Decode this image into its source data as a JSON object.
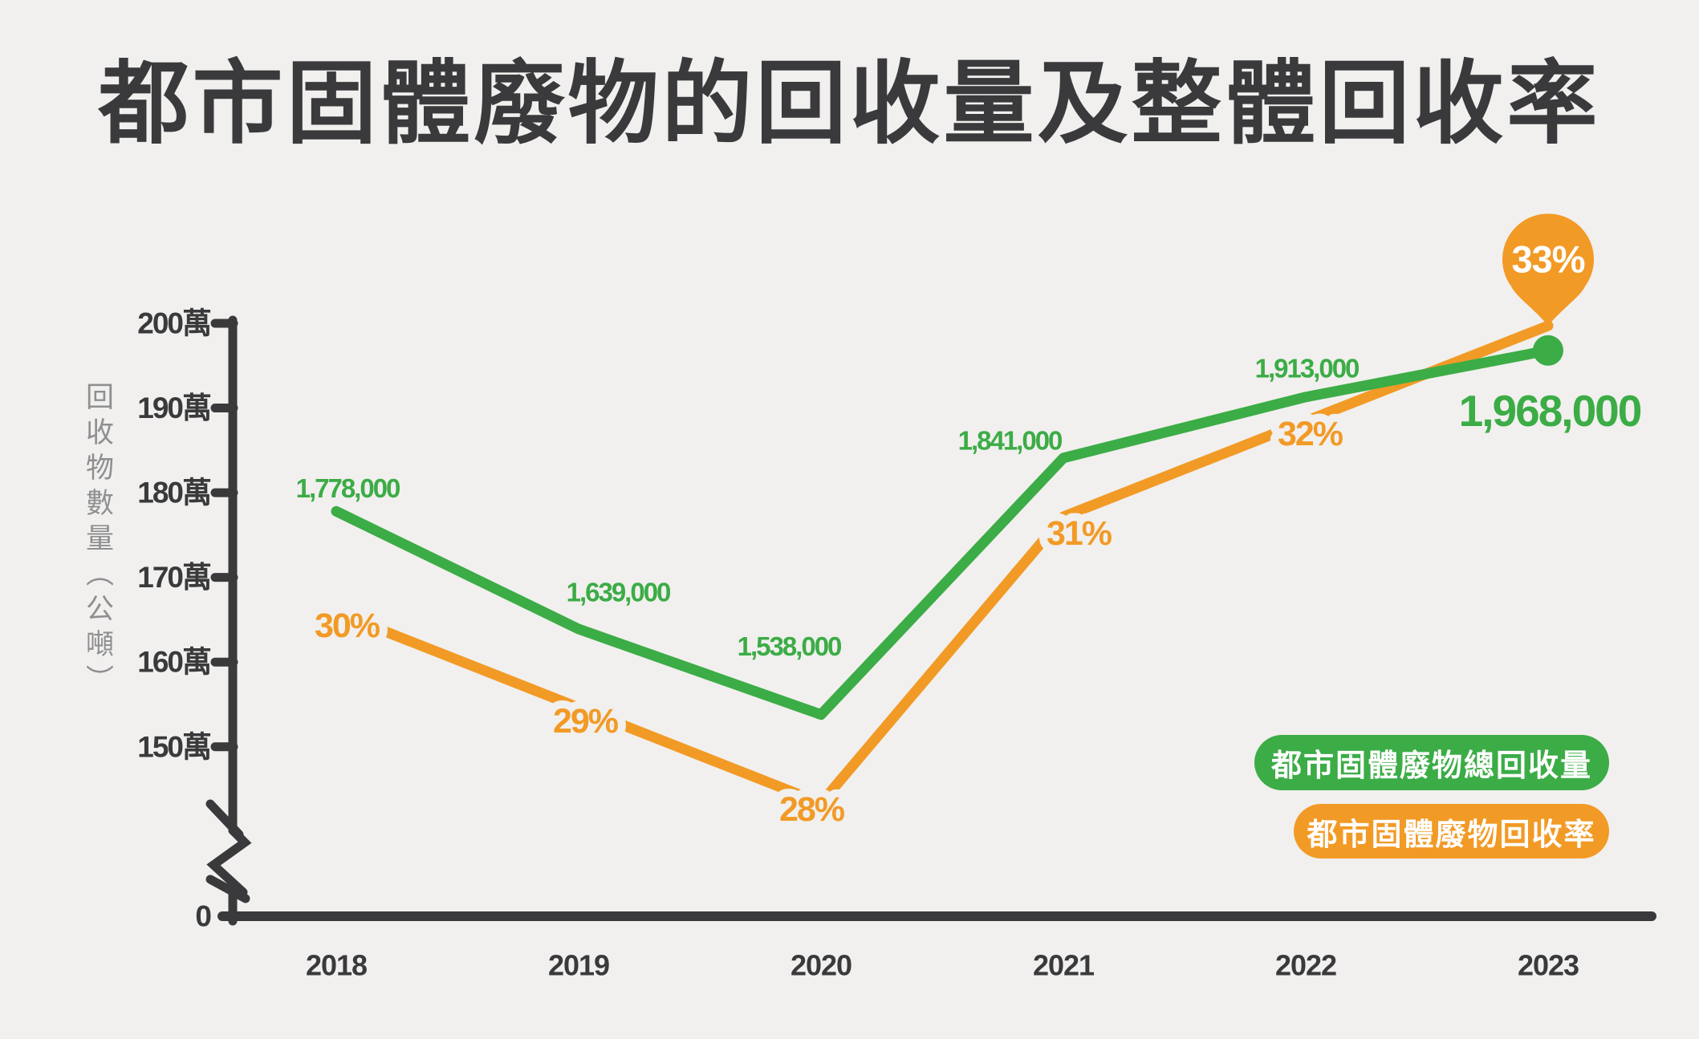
{
  "title": "都市固體廢物的回收量及整體回收率",
  "y_axis_label": "回收物數量（公噸）",
  "colors": {
    "green": "#3CAC46",
    "orange": "#F29A26",
    "text_dark": "#3A3A3C",
    "text_gray": "#8F8F91",
    "background": "#F1F0EE",
    "pin_text": "#FFFFFF"
  },
  "legend": {
    "quantity_label": "都市固體廢物總回收量",
    "rate_label": "都市固體廢物回收率"
  },
  "highlight": {
    "year": "2023",
    "rate_pin_label": "33%",
    "final_quantity_label": "1,968,000"
  },
  "chart_data": {
    "type": "line",
    "title": "都市固體廢物的回收量及整體回收率",
    "categories": [
      "2018",
      "2019",
      "2020",
      "2021",
      "2022",
      "2023"
    ],
    "series": [
      {
        "name": "都市固體廢物總回收量",
        "color": "#3CAC46",
        "values": [
          1778000,
          1639000,
          1538000,
          1841000,
          1913000,
          1968000
        ],
        "point_labels": [
          "1,778,000",
          "1,639,000",
          "1,538,000",
          "1,841,000",
          "1,913,000",
          "1,968,000"
        ]
      },
      {
        "name": "都市固體廢物回收率",
        "color": "#F29A26",
        "values": [
          30,
          29,
          28,
          31,
          32,
          33
        ],
        "point_labels": [
          "30%",
          "29%",
          "28%",
          "31%",
          "32%",
          "33%"
        ]
      }
    ],
    "y_axis": {
      "label": "回收物數量（公噸）",
      "tick_labels": [
        "200萬",
        "190萬",
        "180萬",
        "170萬",
        "160萬",
        "150萬"
      ],
      "tick_values": [
        2000000,
        1900000,
        1800000,
        1700000,
        1600000,
        1500000
      ],
      "zero_label": "0",
      "axis_break": true
    },
    "xlabel": "",
    "ylabel": "回收物數量（公噸）",
    "grid": false,
    "legend_position": "bottom-right"
  }
}
